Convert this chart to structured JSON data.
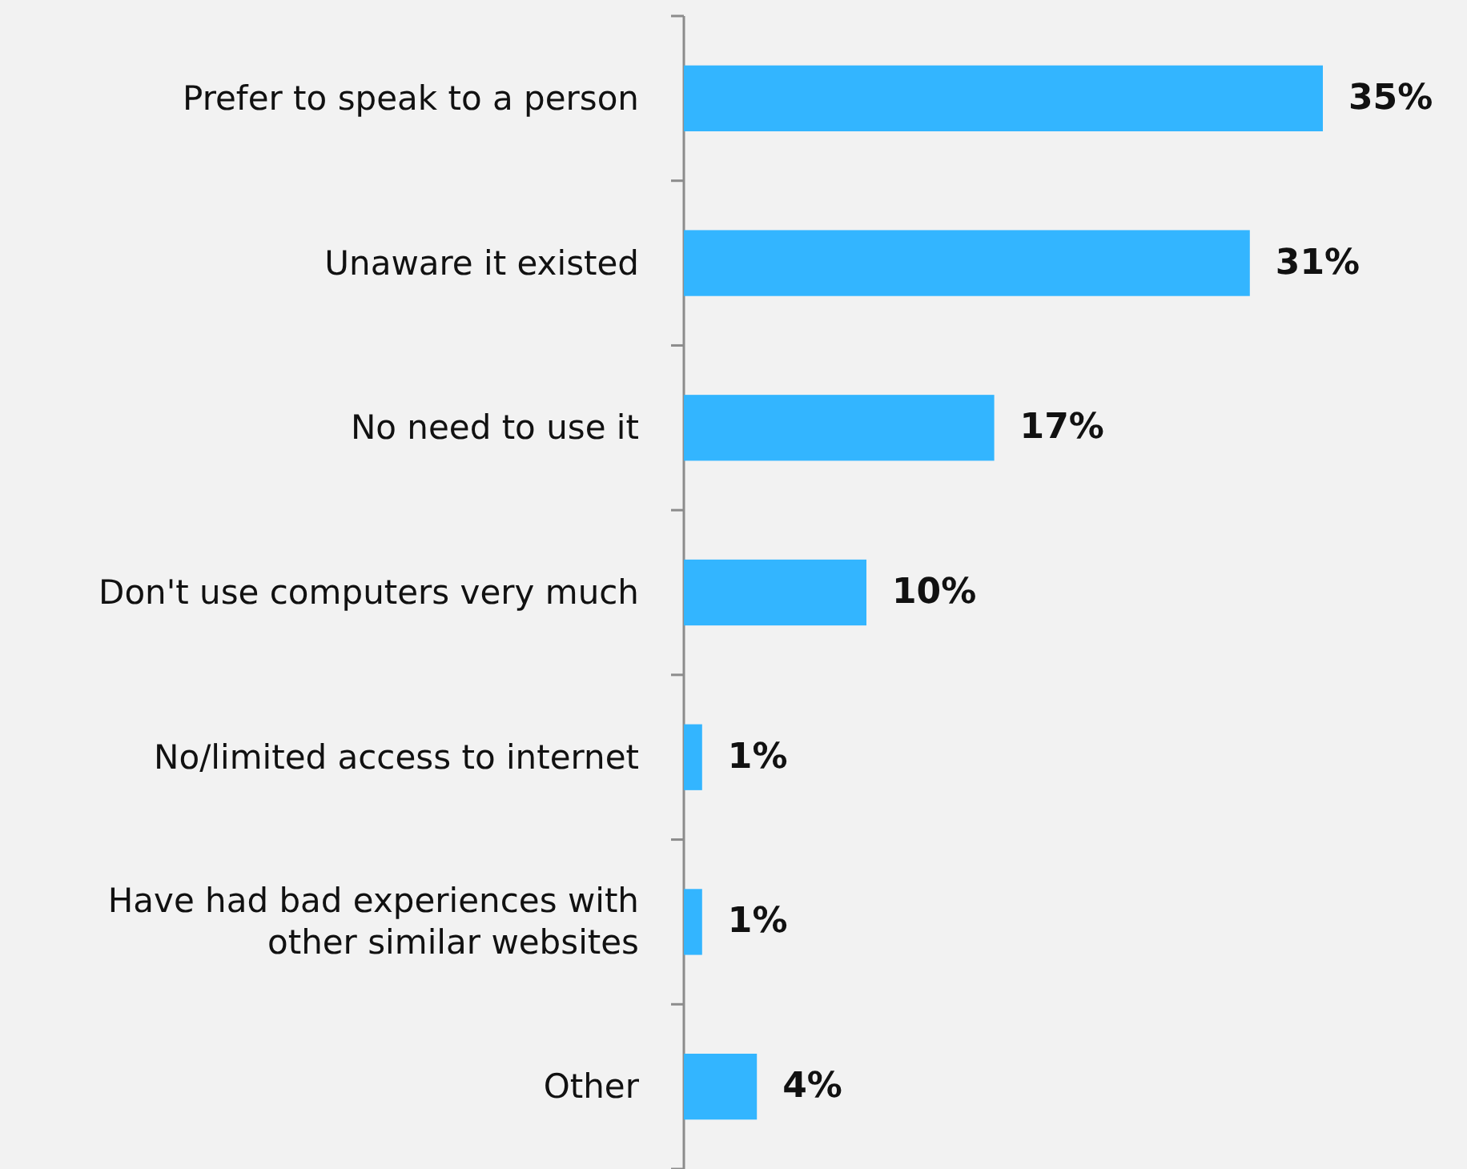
{
  "chart_data": {
    "type": "bar",
    "orientation": "horizontal",
    "categories": [
      "Prefer to speak to a person",
      "Unaware it existed",
      "No need to use it",
      "Don't use computers very much",
      "No/limited access to internet",
      "Have had bad experiences with other similar websites",
      "Other"
    ],
    "values": [
      35,
      31,
      17,
      10,
      1,
      1,
      4
    ],
    "value_labels": [
      "35%",
      "31%",
      "17%",
      "10%",
      "1%",
      "1%",
      "4%"
    ],
    "color": "#33b5ff"
  }
}
